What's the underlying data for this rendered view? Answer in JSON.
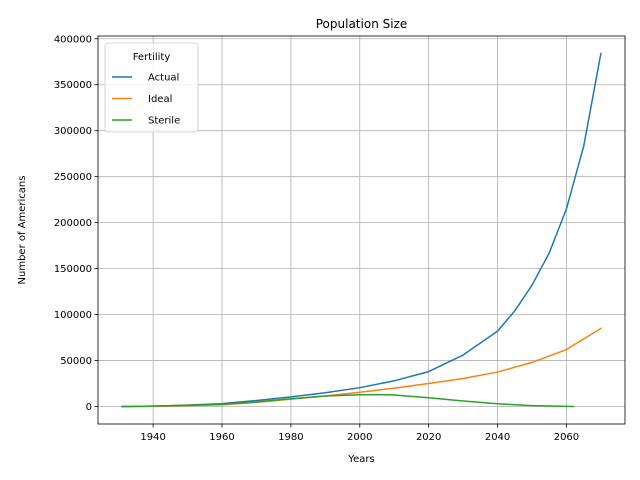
{
  "chart_data": {
    "type": "line",
    "title": "Population Size",
    "xlabel": "Years",
    "ylabel": "Number of Americans",
    "xlim": [
      1924,
      2077
    ],
    "ylim": [
      -19000,
      403000
    ],
    "xticks": [
      1940,
      1960,
      1980,
      2000,
      2020,
      2040,
      2060
    ],
    "yticks": [
      0,
      50000,
      100000,
      150000,
      200000,
      250000,
      300000,
      350000,
      400000
    ],
    "grid": true,
    "legend": {
      "title": "Fertility",
      "position": "upper-left"
    },
    "series": [
      {
        "name": "Actual",
        "color": "#1f77b4",
        "x": [
          1931,
          1940,
          1950,
          1960,
          1970,
          1980,
          1990,
          2000,
          2010,
          2020,
          2030,
          2040,
          2045,
          2050,
          2055,
          2060,
          2065,
          2070
        ],
        "y": [
          0,
          500,
          1500,
          3200,
          6500,
          10500,
          15000,
          20500,
          28000,
          38000,
          56000,
          82000,
          104000,
          132000,
          167000,
          215000,
          283000,
          384000
        ]
      },
      {
        "name": "Ideal",
        "color": "#ff7f0e",
        "x": [
          1931,
          1940,
          1950,
          1960,
          1970,
          1980,
          1990,
          2000,
          2010,
          2020,
          2030,
          2040,
          2050,
          2060,
          2070
        ],
        "y": [
          0,
          300,
          900,
          2000,
          4500,
          8000,
          11500,
          15500,
          20000,
          25000,
          30500,
          37500,
          48000,
          62000,
          85000
        ]
      },
      {
        "name": "Sterile",
        "color": "#2ca02c",
        "x": [
          1931,
          1940,
          1950,
          1960,
          1970,
          1980,
          1990,
          2000,
          2005,
          2010,
          2020,
          2030,
          2040,
          2050,
          2062
        ],
        "y": [
          0,
          500,
          1200,
          2500,
          5000,
          8500,
          11500,
          12800,
          13000,
          12500,
          9500,
          6000,
          3000,
          1000,
          0
        ]
      }
    ]
  }
}
